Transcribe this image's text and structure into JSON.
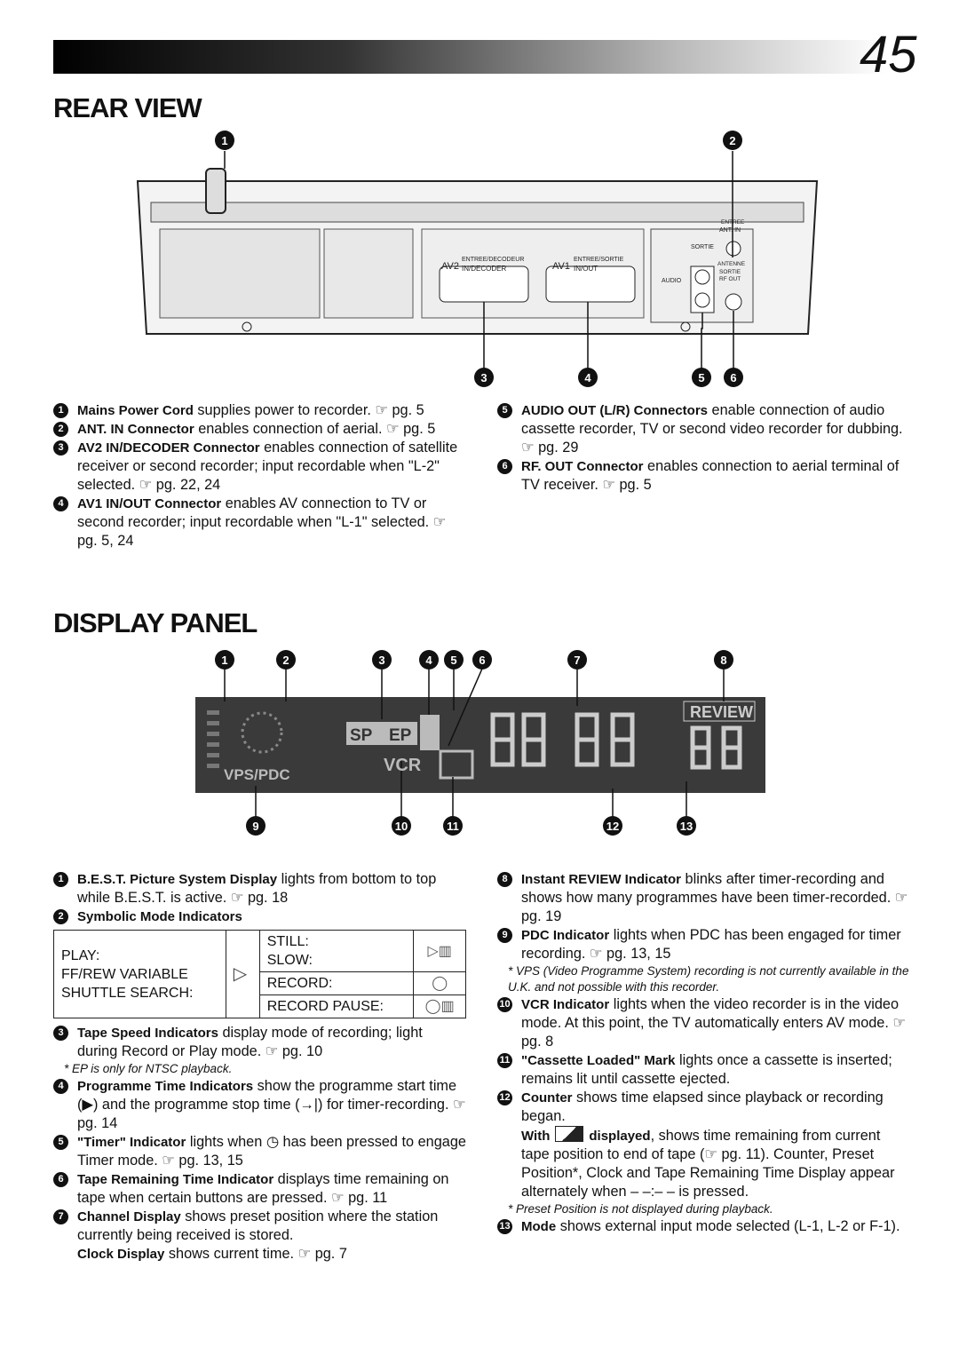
{
  "header": {
    "page_number": "45"
  },
  "rear_view": {
    "title": "REAR VIEW",
    "callouts": [
      "1",
      "2",
      "3",
      "4",
      "5",
      "6"
    ],
    "labels": {
      "av2": "AV2",
      "av2_fr": "ENTREE/DECODEUR",
      "av2_en": "IN/DECODER",
      "av1": "AV1",
      "av1_fr": "ENTREE/SORTIE",
      "av1_en": "IN/OUT",
      "entree": "ENTREE",
      "ant_in": "ANT. IN",
      "sortie": "SORTIE",
      "antenne": "ANTENNE",
      "sortie_rf": "SORTIE",
      "rf_out": "RF OUT",
      "audio": "AUDIO"
    },
    "items_left": [
      {
        "number": "1",
        "term": "Mains Power Cord",
        "text": " supplies power to recorder. ☞ pg. 5"
      },
      {
        "number": "2",
        "term": "ANT. IN Connector",
        "text": " enables connection of aerial. ☞ pg. 5"
      },
      {
        "number": "3",
        "term": "AV2 IN/DECODER Connector",
        "text": " enables connection of satellite receiver or second recorder; input recordable when \"L-2\" selected. ☞ pg. 22, 24"
      },
      {
        "number": "4",
        "term": "AV1 IN/OUT Connector",
        "text": " enables AV connection to TV or second recorder; input recordable when \"L-1\" selected. ☞ pg. 5, 24"
      }
    ],
    "items_right": [
      {
        "number": "5",
        "term": "AUDIO OUT (L/R) Connectors",
        "text": " enable connection of audio cassette recorder, TV or second video recorder for dubbing. ☞ pg. 29"
      },
      {
        "number": "6",
        "term": "RF. OUT Connector",
        "text": " enables connection to aerial terminal of TV receiver. ☞ pg. 5"
      }
    ]
  },
  "display_panel": {
    "title": "DISPLAY PANEL",
    "callouts": [
      "1",
      "2",
      "3",
      "4",
      "5",
      "6",
      "7",
      "8",
      "9",
      "10",
      "11",
      "12",
      "13"
    ],
    "labels": {
      "sp": "SP",
      "ep": "EP",
      "vcr": "VCR",
      "vps_pdc": "VPS/PDC",
      "review": "REVIEW"
    },
    "table": {
      "left_lines": [
        "PLAY:",
        "FF/REW VARIABLE",
        "SHUTTLE SEARCH:"
      ],
      "modes": [
        "STILL:",
        "SLOW:",
        "RECORD:",
        "RECORD PAUSE:"
      ]
    },
    "items_left": [
      {
        "number": "1",
        "term": "B.E.S.T. Picture System Display",
        "text": " lights from bottom to top while B.E.S.T. is active. ☞ pg. 18"
      },
      {
        "number": "2",
        "term": "Symbolic Mode Indicators"
      },
      {
        "number": "3",
        "term": "Tape Speed Indicators",
        "text": " display mode of recording; light during Record or Play mode. ☞ pg. 10",
        "note": "* EP is only for NTSC playback."
      },
      {
        "number": "4",
        "term": "Programme Time Indicators",
        "text": " show the programme start time (▶) and the programme stop time (→|) for timer-recording. ☞ pg. 14"
      },
      {
        "number": "5",
        "term": "\"Timer\" Indicator",
        "text": " lights when ◷ has been pressed to engage Timer mode. ☞ pg. 13, 15"
      },
      {
        "number": "6",
        "term": "Tape Remaining Time Indicator",
        "text": " displays time remaining on tape when certain buttons are pressed. ☞ pg. 11"
      },
      {
        "number": "7",
        "term": "Channel Display",
        "text": " shows preset position where the station currently being received is stored.",
        "sub_term": "Clock Display",
        "sub_text": " shows current time. ☞ pg. 7"
      }
    ],
    "items_right": [
      {
        "number": "8",
        "term": "Instant REVIEW Indicator",
        "text": " blinks after timer-recording and shows how many programmes have been timer-recorded. ☞ pg. 19"
      },
      {
        "number": "9",
        "term": "PDC Indicator",
        "text": " lights when PDC has been engaged for timer recording. ☞ pg. 13, 15",
        "note": "* VPS (Video Programme System) recording is not currently available in the U.K. and not possible with this recorder."
      },
      {
        "number": "10",
        "term": "VCR Indicator",
        "text": " lights when the video recorder is in the video mode. At this point, the TV automatically enters AV mode. ☞ pg. 8"
      },
      {
        "number": "11",
        "term": "\"Cassette Loaded\" Mark",
        "text": " lights once a cassette is inserted; remains lit until cassette ejected."
      },
      {
        "number": "12",
        "term": "Counter",
        "text": " shows time elapsed since playback or recording began.",
        "sub_term": "With",
        "sub_term2": "displayed",
        "sub_text": ", shows time remaining from current tape position to end of tape (☞ pg. 11). Counter, Preset Position*, Clock and Tape Remaining Time Display appear alternately when – –:– – is pressed.",
        "note": "* Preset Position is not displayed during playback."
      },
      {
        "number": "13",
        "term": "Mode",
        "text": " shows external input mode selected (L-1, L-2 or F-1)."
      }
    ]
  }
}
